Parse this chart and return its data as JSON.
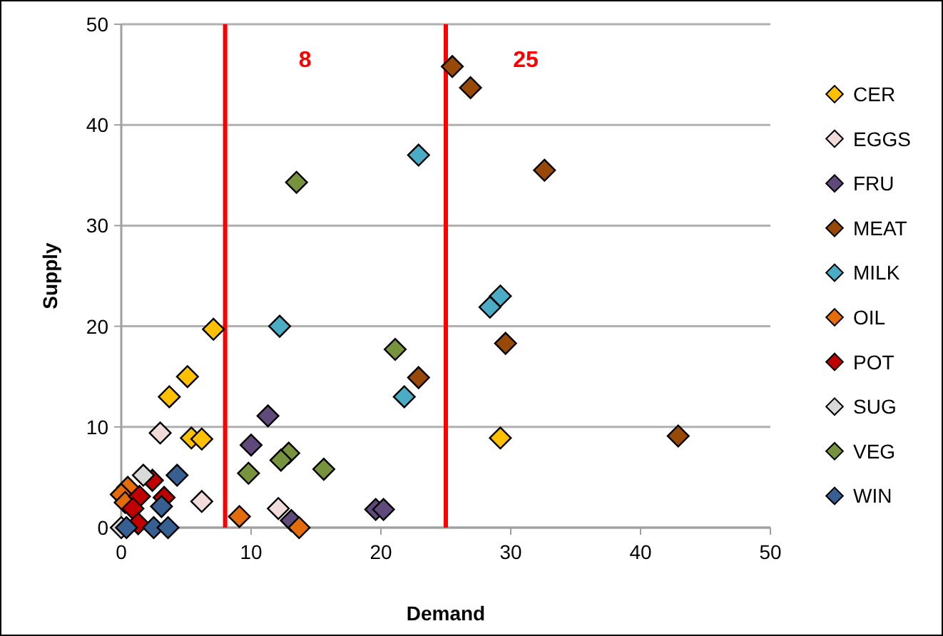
{
  "chart_data": {
    "type": "scatter",
    "xlabel": "Demand",
    "ylabel": "Supply",
    "xlim": [
      0,
      50
    ],
    "ylim": [
      0,
      50
    ],
    "xticks": [
      0,
      10,
      20,
      30,
      40,
      50
    ],
    "yticks": [
      0,
      10,
      20,
      30,
      40,
      50
    ],
    "grid": "y",
    "legend": "right",
    "marker": "diamond",
    "ref_lines": [
      {
        "axis": "x",
        "value": 8,
        "label": "8",
        "color": "#ff0000"
      },
      {
        "axis": "x",
        "value": 25,
        "label": "25",
        "color": "#ff0000"
      }
    ],
    "series": [
      {
        "name": "CER",
        "color": "#ffc000",
        "x": [
          7.1,
          5.1,
          3.7,
          5.4,
          6.2,
          29.2
        ],
        "values": [
          19.7,
          15,
          13,
          8.9,
          8.8,
          8.9
        ]
      },
      {
        "name": "EGGS",
        "color": "#f2dcdb",
        "x": [
          3,
          6.2,
          12.1
        ],
        "values": [
          9.4,
          2.6,
          1.9
        ]
      },
      {
        "name": "FRU",
        "color": "#604a7b",
        "x": [
          11.3,
          10,
          13.1,
          19.6,
          20.2
        ],
        "values": [
          11.1,
          8.2,
          0.7,
          1.8,
          1.8
        ]
      },
      {
        "name": "MEAT",
        "color": "#984807",
        "x": [
          25.5,
          26.9,
          32.6,
          29.6,
          22.9,
          42.9
        ],
        "values": [
          45.8,
          43.7,
          35.5,
          18.3,
          14.9,
          9.1
        ]
      },
      {
        "name": "MILK",
        "color": "#4bacc6",
        "x": [
          22.9,
          29.2,
          28.4,
          21.8,
          12.2
        ],
        "values": [
          37,
          23,
          21.9,
          13,
          20
        ]
      },
      {
        "name": "OIL",
        "color": "#e46c0a",
        "x": [
          9.1,
          13.7,
          0.5,
          0,
          0.3
        ],
        "values": [
          1.1,
          0,
          4,
          3.3,
          2.5
        ]
      },
      {
        "name": "POT",
        "color": "#c00000",
        "x": [
          2.4,
          1.4,
          0.9,
          3.3,
          1.3
        ],
        "values": [
          4.7,
          3.1,
          1.9,
          3,
          0.4
        ]
      },
      {
        "name": "SUG",
        "color": "#d9d9d9",
        "x": [
          0,
          1.7
        ],
        "values": [
          0,
          5.2
        ]
      },
      {
        "name": "VEG",
        "color": "#77933c",
        "x": [
          13.5,
          21.1,
          12.9,
          12.3,
          9.8,
          15.6
        ],
        "values": [
          34.3,
          17.7,
          7.4,
          6.7,
          5.4,
          5.8
        ]
      },
      {
        "name": "WIN",
        "color": "#376092",
        "x": [
          4.3,
          3.1,
          0.4,
          2.5,
          3.6
        ],
        "values": [
          5.2,
          2.1,
          0,
          0,
          0
        ]
      }
    ]
  }
}
